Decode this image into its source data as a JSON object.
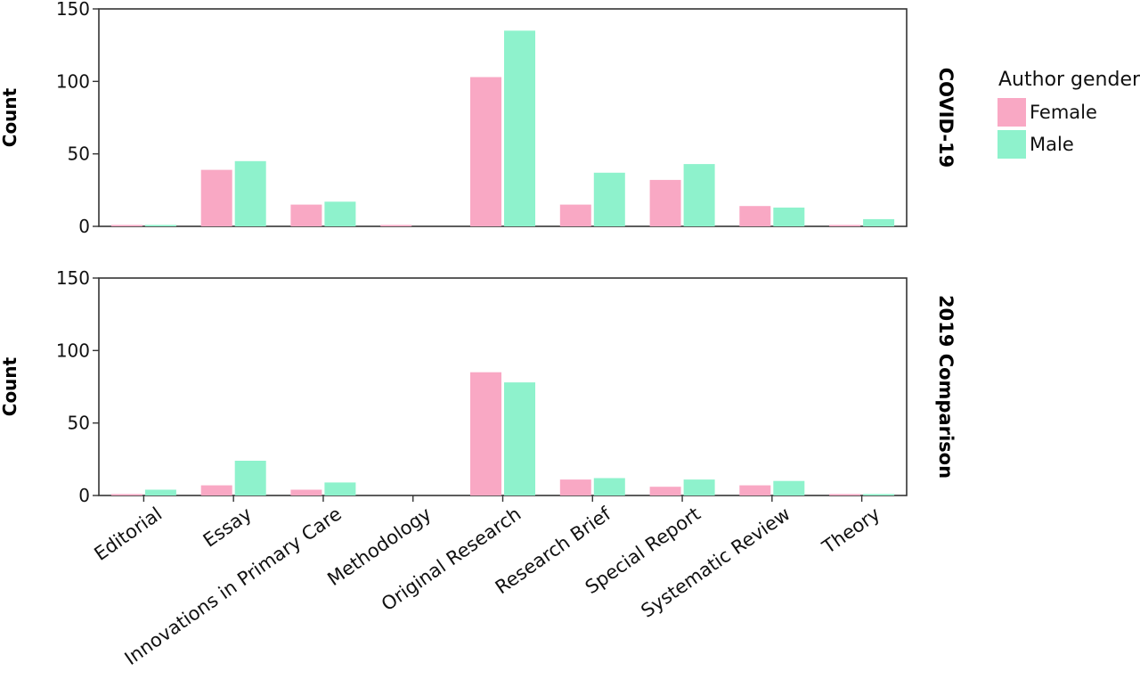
{
  "chart_data": {
    "type": "bar",
    "categories": [
      "Editorial",
      "Essay",
      "Innovations in Primary Care",
      "Methodology",
      "Original Research",
      "Research Brief",
      "Special Report",
      "Systematic Review",
      "Theory"
    ],
    "legend": {
      "title": "Author gender",
      "position": "right",
      "entries": [
        {
          "name": "Female",
          "color": "#f9a8c4"
        },
        {
          "name": "Male",
          "color": "#8ef2cc"
        }
      ]
    },
    "ylabel": "Count",
    "ylim": [
      0,
      150
    ],
    "yticks": [
      0,
      50,
      100,
      150
    ],
    "grid": false,
    "panels": [
      {
        "strip": "COVID-19",
        "series": [
          {
            "name": "Female",
            "values": [
              1,
              39,
              15,
              1,
              103,
              15,
              32,
              14,
              1
            ]
          },
          {
            "name": "Male",
            "values": [
              1,
              45,
              17,
              0,
              135,
              37,
              43,
              13,
              5
            ]
          }
        ]
      },
      {
        "strip": "2019 Comparison",
        "series": [
          {
            "name": "Female",
            "values": [
              1,
              7,
              4,
              0,
              85,
              11,
              6,
              7,
              1
            ]
          },
          {
            "name": "Male",
            "values": [
              4,
              24,
              9,
              0,
              78,
              12,
              11,
              10,
              1
            ]
          }
        ]
      }
    ]
  }
}
